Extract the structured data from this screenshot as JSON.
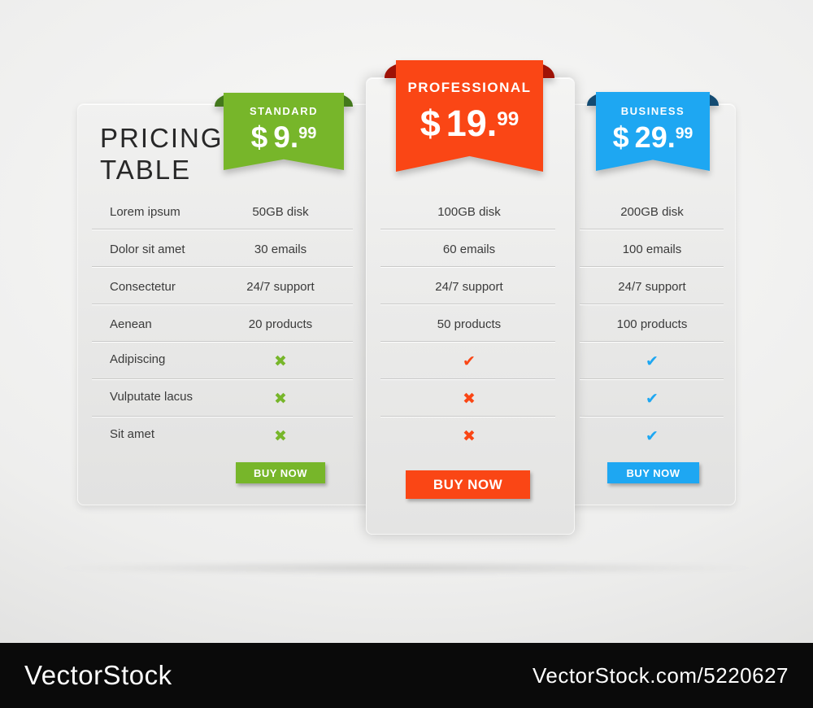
{
  "title": {
    "line1": "PRICING",
    "line2": "TABLE"
  },
  "features": [
    "Lorem ipsum",
    "Dolor sit amet",
    "Consectetur",
    "Aenean",
    "Adipiscing",
    "Vulputate lacus",
    "Sit amet"
  ],
  "icons": {
    "check": "✔",
    "cross": "✖"
  },
  "plans": [
    {
      "name": "STANDARD",
      "currency": "$",
      "price_main": "9.",
      "price_sup": "99",
      "color": "#77b62a",
      "fold_color": "#43781c",
      "values": [
        "50GB disk",
        "30 emails",
        "24/7 support",
        "20 products"
      ],
      "marks": [
        "✖",
        "✖",
        "✖"
      ],
      "button": "BUY NOW"
    },
    {
      "name": "PROFESSIONAL",
      "currency": "$",
      "price_main": "19.",
      "price_sup": "99",
      "color": "#fa4615",
      "fold_color": "#9e1206",
      "values": [
        "100GB disk",
        "60 emails",
        "24/7 support",
        "50 products"
      ],
      "marks": [
        "✔",
        "✖",
        "✖"
      ],
      "button": "BUY NOW"
    },
    {
      "name": "BUSINESS",
      "currency": "$",
      "price_main": "29.",
      "price_sup": "99",
      "color": "#1ea7f2",
      "fold_color": "#134b72",
      "values": [
        "200GB disk",
        "100 emails",
        "24/7 support",
        "100 products"
      ],
      "marks": [
        "✔",
        "✔",
        "✔"
      ],
      "button": "BUY NOW"
    }
  ],
  "watermark": {
    "brand": "VectorStock",
    "url": "VectorStock.com/5220627"
  }
}
